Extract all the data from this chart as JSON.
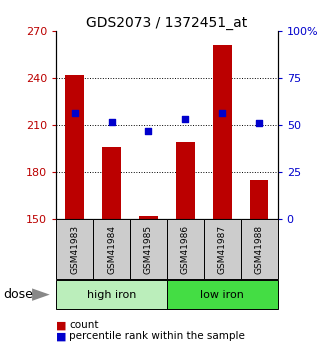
{
  "title": "GDS2073 / 1372451_at",
  "samples": [
    "GSM41983",
    "GSM41984",
    "GSM41985",
    "GSM41986",
    "GSM41987",
    "GSM41988"
  ],
  "red_values": [
    242,
    196,
    152,
    199,
    261,
    175
  ],
  "blue_values": [
    218,
    212,
    206,
    214,
    218,
    211
  ],
  "ylim_left": [
    150,
    270
  ],
  "yticks_left": [
    150,
    180,
    210,
    240,
    270
  ],
  "yticks_right": [
    0,
    25,
    50,
    75,
    100
  ],
  "ytick_labels_right": [
    "0",
    "25",
    "50",
    "75",
    "100%"
  ],
  "bar_color": "#bb0000",
  "dot_color": "#0000cc",
  "group_high_color": "#bbeebb",
  "group_low_color": "#44dd44",
  "sample_box_color": "#cccccc",
  "title_fontsize": 10,
  "tick_fontsize": 8,
  "sample_fontsize": 6.5,
  "group_fontsize": 8,
  "legend_fontsize": 7.5,
  "dose_fontsize": 9,
  "bar_width": 0.5
}
